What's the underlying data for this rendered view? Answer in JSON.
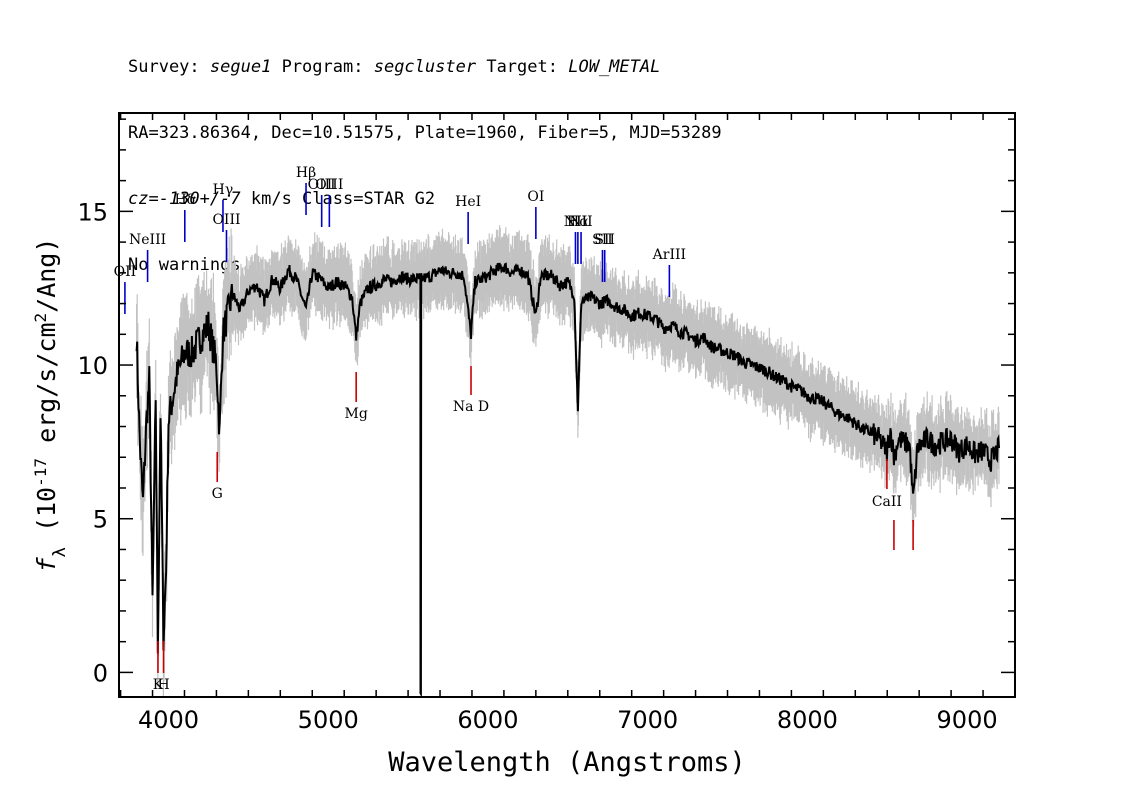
{
  "header": {
    "survey_label": "Survey:",
    "survey_value": "segue1",
    "program_label": "Program:",
    "program_value": "segcluster",
    "target_label": "Target:",
    "target_value": "LOW_METAL",
    "line2": "RA=323.86364, Dec=10.51575, Plate=1960, Fiber=5, MJD=53289",
    "cz_label": "cz=",
    "cz_value": "-130+/-7",
    "cz_units": "km/s Class=STAR G2",
    "line4": "No warnings."
  },
  "chart_data": {
    "type": "line",
    "xlabel": "Wavelength (Angstroms)",
    "ylabel": "f_λ (10^-17 erg/s/cm^2/Ang)",
    "xlim": [
      3690,
      9300
    ],
    "ylim": [
      -0.8,
      18.2
    ],
    "x_ticks": [
      4000,
      5000,
      6000,
      7000,
      8000,
      9000
    ],
    "y_ticks": [
      0,
      5,
      10,
      15
    ],
    "series": [
      {
        "color": "#000000",
        "points": [
          [
            3800,
            11.0
          ],
          [
            3820,
            7.5
          ],
          [
            3840,
            5.5
          ],
          [
            3860,
            8.0
          ],
          [
            3880,
            9.5
          ],
          [
            3900,
            2.3
          ],
          [
            3920,
            9.0
          ],
          [
            3933,
            0.8
          ],
          [
            3950,
            8.5
          ],
          [
            3968,
            1.2
          ],
          [
            3985,
            3.3
          ],
          [
            4000,
            8.2
          ],
          [
            4050,
            9.6
          ],
          [
            4100,
            10.4
          ],
          [
            4150,
            10.4
          ],
          [
            4200,
            10.9
          ],
          [
            4250,
            11.3
          ],
          [
            4300,
            10.0
          ],
          [
            4320,
            7.8
          ],
          [
            4340,
            11.0
          ],
          [
            4400,
            12.3
          ],
          [
            4450,
            11.8
          ],
          [
            4500,
            12.4
          ],
          [
            4550,
            12.6
          ],
          [
            4600,
            12.1
          ],
          [
            4650,
            12.8
          ],
          [
            4700,
            12.5
          ],
          [
            4750,
            13.1
          ],
          [
            4800,
            12.8
          ],
          [
            4861,
            11.8
          ],
          [
            4900,
            13.0
          ],
          [
            4950,
            12.8
          ],
          [
            5000,
            12.5
          ],
          [
            5050,
            12.7
          ],
          [
            5100,
            12.6
          ],
          [
            5150,
            12.2
          ],
          [
            5175,
            10.9
          ],
          [
            5200,
            12.0
          ],
          [
            5250,
            12.5
          ],
          [
            5300,
            12.6
          ],
          [
            5350,
            12.8
          ],
          [
            5400,
            12.7
          ],
          [
            5450,
            12.9
          ],
          [
            5500,
            12.8
          ],
          [
            5577,
            12.8
          ],
          [
            5578,
            -0.8
          ],
          [
            5580,
            -0.8
          ],
          [
            5582,
            12.8
          ],
          [
            5650,
            12.9
          ],
          [
            5700,
            13.1
          ],
          [
            5750,
            13.0
          ],
          [
            5800,
            13.0
          ],
          [
            5850,
            12.9
          ],
          [
            5893,
            11.0
          ],
          [
            5920,
            12.7
          ],
          [
            6000,
            12.9
          ],
          [
            6050,
            13.1
          ],
          [
            6100,
            13.2
          ],
          [
            6150,
            13.0
          ],
          [
            6200,
            13.1
          ],
          [
            6250,
            12.9
          ],
          [
            6300,
            11.6
          ],
          [
            6330,
            12.9
          ],
          [
            6400,
            12.9
          ],
          [
            6450,
            12.6
          ],
          [
            6500,
            12.7
          ],
          [
            6540,
            12.3
          ],
          [
            6563,
            8.6
          ],
          [
            6585,
            12.1
          ],
          [
            6650,
            12.2
          ],
          [
            6700,
            12.0
          ],
          [
            6750,
            12.1
          ],
          [
            6800,
            11.9
          ],
          [
            6850,
            11.8
          ],
          [
            6900,
            11.6
          ],
          [
            6950,
            11.7
          ],
          [
            7000,
            11.6
          ],
          [
            7050,
            11.5
          ],
          [
            7100,
            11.2
          ],
          [
            7150,
            11.3
          ],
          [
            7200,
            11.1
          ],
          [
            7250,
            11.0
          ],
          [
            7300,
            10.8
          ],
          [
            7350,
            10.9
          ],
          [
            7400,
            10.6
          ],
          [
            7450,
            10.5
          ],
          [
            7500,
            10.4
          ],
          [
            7550,
            10.3
          ],
          [
            7600,
            10.1
          ],
          [
            7650,
            10.0
          ],
          [
            7700,
            9.9
          ],
          [
            7750,
            9.8
          ],
          [
            7800,
            9.6
          ],
          [
            7850,
            9.5
          ],
          [
            7900,
            9.3
          ],
          [
            7950,
            9.2
          ],
          [
            8000,
            9.0
          ],
          [
            8050,
            8.9
          ],
          [
            8100,
            8.8
          ],
          [
            8150,
            8.6
          ],
          [
            8200,
            8.4
          ],
          [
            8250,
            8.3
          ],
          [
            8300,
            8.1
          ],
          [
            8350,
            7.9
          ],
          [
            8400,
            7.8
          ],
          [
            8450,
            7.6
          ],
          [
            8498,
            7.2
          ],
          [
            8520,
            7.9
          ],
          [
            8542,
            7.0
          ],
          [
            8570,
            7.6
          ],
          [
            8600,
            7.5
          ],
          [
            8640,
            7.4
          ],
          [
            8662,
            5.6
          ],
          [
            8690,
            7.3
          ],
          [
            8750,
            7.6
          ],
          [
            8800,
            7.4
          ],
          [
            8850,
            7.5
          ],
          [
            8900,
            7.6
          ],
          [
            8950,
            7.2
          ],
          [
            9000,
            7.4
          ],
          [
            9050,
            7.1
          ],
          [
            9100,
            7.2
          ],
          [
            9150,
            6.9
          ],
          [
            9200,
            7.3
          ]
        ]
      }
    ],
    "emission_lines": [
      {
        "label": "OII",
        "wave": 3727
      },
      {
        "label": "NeIII",
        "wave": 3869
      },
      {
        "label": "Hδ",
        "wave": 4102
      },
      {
        "label": "Hγ",
        "wave": 4341
      },
      {
        "label": "OIII",
        "wave": 4363
      },
      {
        "label": "Hβ",
        "wave": 4861
      },
      {
        "label": "OIII",
        "wave": 4959
      },
      {
        "label": "OIII",
        "wave": 5007
      },
      {
        "label": "HeI",
        "wave": 5876
      },
      {
        "label": "OI",
        "wave": 6300
      },
      {
        "label": "NII",
        "wave": 6548
      },
      {
        "label": "Hα",
        "wave": 6563
      },
      {
        "label": "NII",
        "wave": 6583
      },
      {
        "label": "SII",
        "wave": 6717
      },
      {
        "label": "SII",
        "wave": 6731
      },
      {
        "label": "ArIII",
        "wave": 7136
      }
    ],
    "absorption_lines": [
      {
        "label": "K",
        "wave": 3934
      },
      {
        "label": "H",
        "wave": 3969
      },
      {
        "label": "G",
        "wave": 4305
      },
      {
        "label": "Mg",
        "wave": 5175
      },
      {
        "label": "Na D",
        "wave": 5894
      },
      {
        "label": "CaII",
        "wave": 8498
      },
      {
        "label": "CaII",
        "wave": 8542
      },
      {
        "label": "CaII",
        "wave": 8662
      }
    ],
    "colors": {
      "spectrum": "#000000",
      "error_band": "#c2c2c2",
      "emission_marker": "#0000cc",
      "absorption_marker": "#cc0000"
    },
    "grid": false
  }
}
